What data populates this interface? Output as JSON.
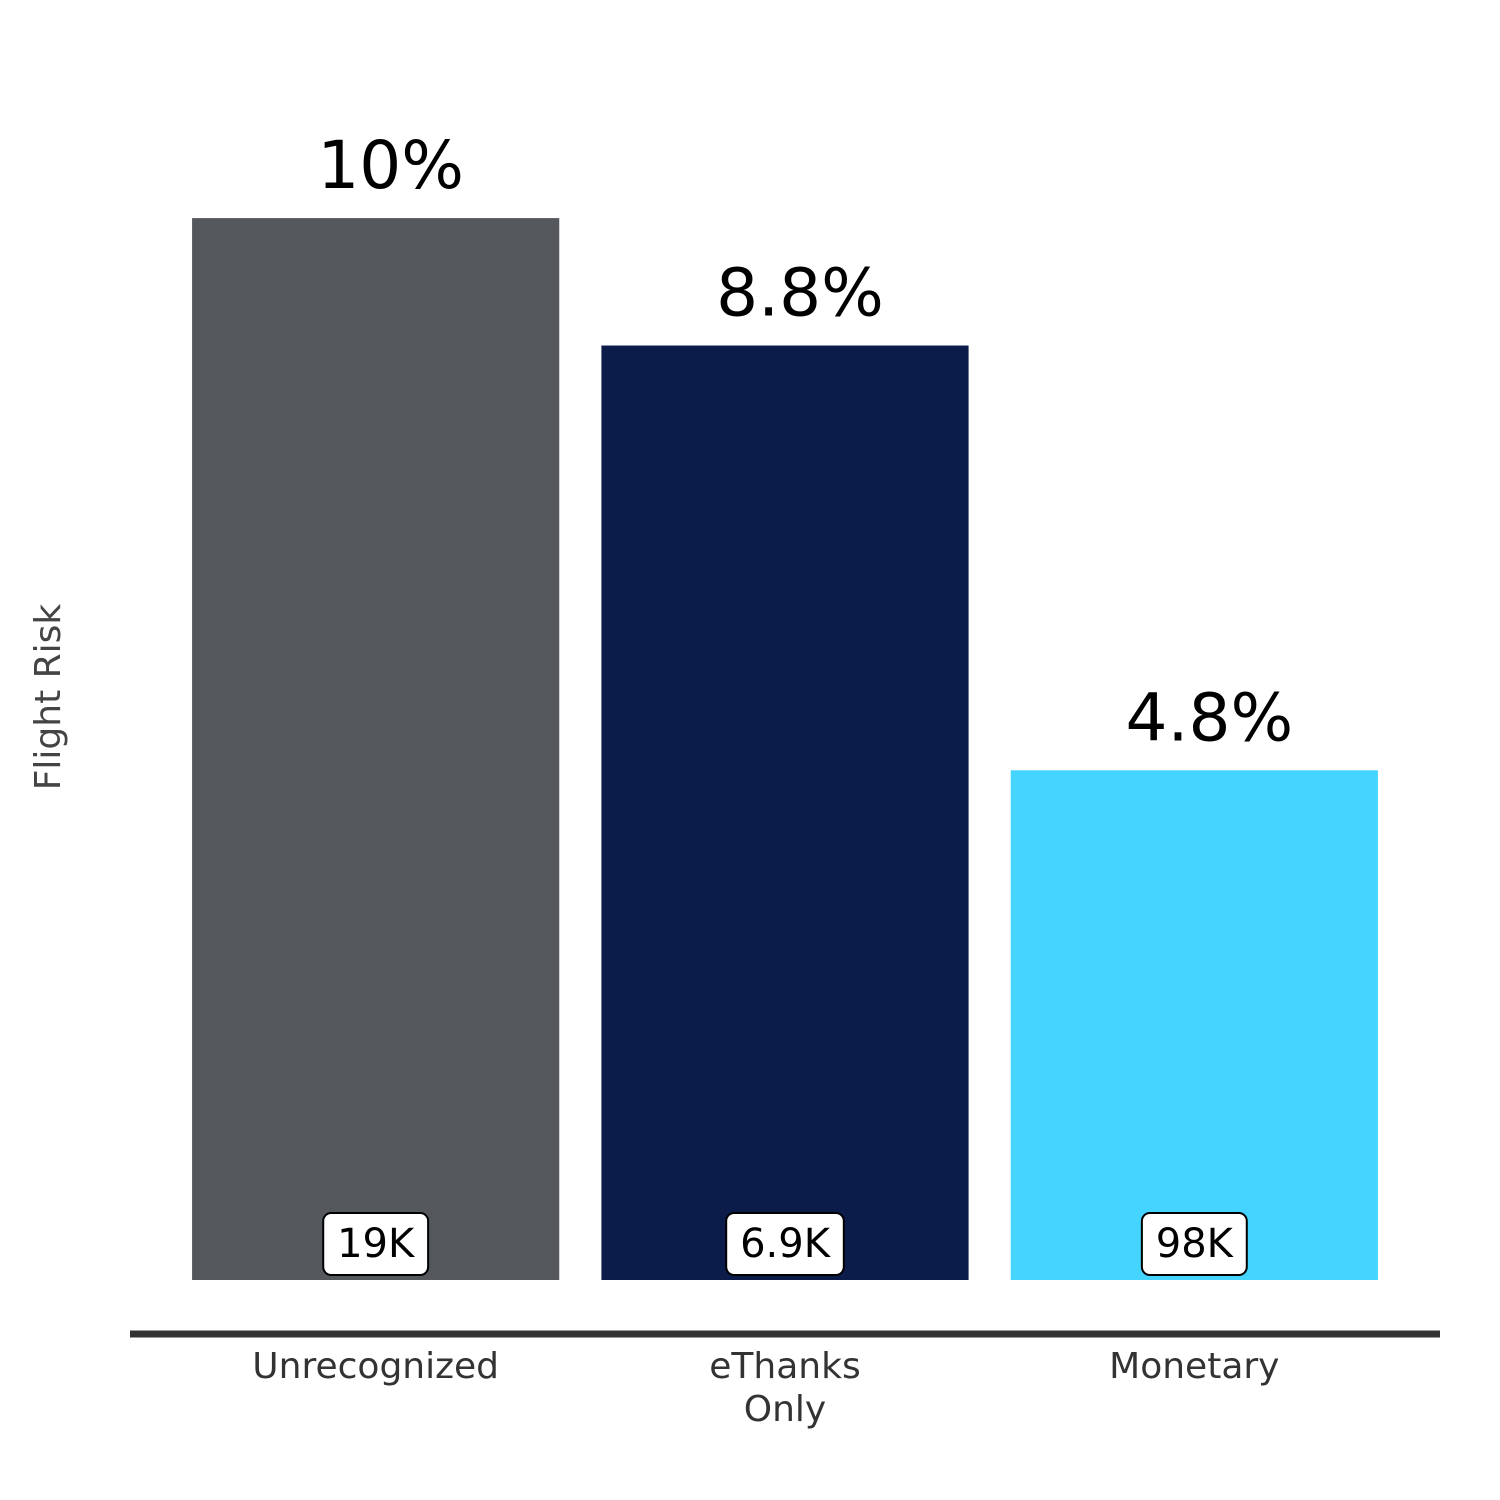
{
  "chart_data": {
    "type": "bar",
    "y_label": "Flight Risk",
    "categories": [
      "Unrecognized",
      "eThanks\nOnly",
      "Monetary"
    ],
    "values": [
      10,
      8.8,
      4.8
    ],
    "value_labels": [
      "10%",
      "8.8%",
      "4.8%"
    ],
    "annotations": [
      "19K",
      "6.9K",
      "98K"
    ],
    "colors": [
      "#54575c",
      "#0b1c4a",
      "#44d4ff"
    ],
    "ylim": [
      0,
      10.5
    ]
  }
}
